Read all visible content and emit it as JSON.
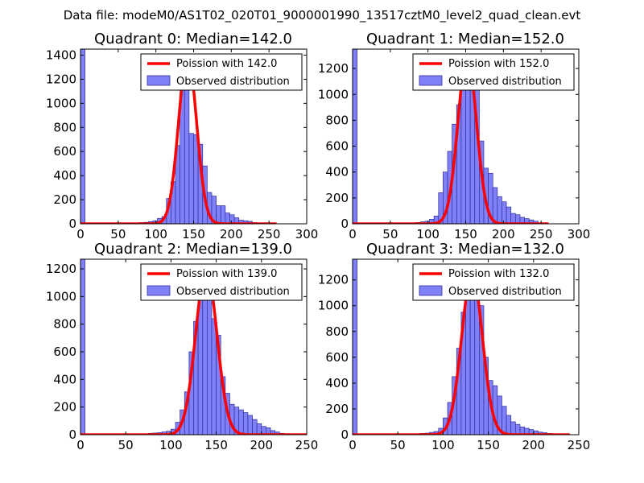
{
  "suptitle": "Data file: modeM0/AS1T02_020T01_9000001990_13517cztM0_level2_quad_clean.evt",
  "colors": {
    "bar_fill": "#8080f8",
    "bar_edge": "#2f2f9a",
    "poisson_line": "#ff0000",
    "axes": "#000000"
  },
  "chart_data": [
    {
      "type": "bar",
      "title": "Quadrant 0: Median=142.0",
      "xlim": [
        0,
        300
      ],
      "ylim": [
        0,
        1450
      ],
      "xticks": [
        0,
        50,
        100,
        150,
        200,
        250,
        300
      ],
      "yticks": [
        0,
        200,
        400,
        600,
        800,
        1000,
        1200,
        1400
      ],
      "bin_width": 6,
      "series": [
        {
          "name": "Observed distribution",
          "bin_left": [
            0,
            78,
            84,
            90,
            96,
            102,
            108,
            114,
            120,
            126,
            132,
            138,
            144,
            150,
            156,
            162,
            168,
            174,
            180,
            186,
            192,
            198,
            204,
            210,
            216,
            222,
            228
          ],
          "values": [
            1450,
            10,
            12,
            18,
            25,
            45,
            60,
            210,
            350,
            650,
            1230,
            1200,
            750,
            740,
            660,
            480,
            260,
            230,
            150,
            150,
            90,
            75,
            50,
            30,
            25,
            20,
            10
          ]
        },
        {
          "name": "Poission with 142.0",
          "lambda": 142.0,
          "peak": 1400,
          "x_range": [
            0,
            260
          ]
        }
      ],
      "legend": [
        "Poission with 142.0",
        "Observed distribution"
      ],
      "legend_loc": "top-right"
    },
    {
      "type": "bar",
      "title": "Quadrant 1: Median=152.0",
      "xlim": [
        0,
        300
      ],
      "ylim": [
        0,
        1350
      ],
      "xticks": [
        0,
        50,
        100,
        150,
        200,
        250,
        300
      ],
      "yticks": [
        0,
        200,
        400,
        600,
        800,
        1000,
        1200
      ],
      "bin_width": 6,
      "series": [
        {
          "name": "Observed distribution",
          "bin_left": [
            0,
            84,
            90,
            96,
            102,
            108,
            114,
            120,
            126,
            132,
            138,
            144,
            150,
            156,
            162,
            168,
            174,
            180,
            186,
            192,
            198,
            204,
            210,
            216,
            222,
            228,
            234,
            240
          ],
          "values": [
            1350,
            10,
            15,
            20,
            35,
            60,
            240,
            400,
            560,
            770,
            920,
            1050,
            1250,
            1220,
            1100,
            640,
            430,
            390,
            280,
            210,
            170,
            130,
            80,
            70,
            50,
            40,
            30,
            20
          ]
        },
        {
          "name": "Poission with 152.0",
          "lambda": 152.0,
          "peak": 1300,
          "x_range": [
            0,
            260
          ]
        }
      ],
      "legend": [
        "Poission with 152.0",
        "Observed distribution"
      ],
      "legend_loc": "top-right"
    },
    {
      "type": "bar",
      "title": "Quadrant 2: Median=139.0",
      "xlim": [
        0,
        250
      ],
      "ylim": [
        0,
        1270
      ],
      "xticks": [
        0,
        50,
        100,
        150,
        200,
        250
      ],
      "yticks": [
        0,
        200,
        400,
        600,
        800,
        1000,
        1200
      ],
      "bin_width": 5,
      "series": [
        {
          "name": "Observed distribution",
          "bin_left": [
            0,
            75,
            80,
            85,
            90,
            95,
            100,
            105,
            110,
            115,
            120,
            125,
            130,
            135,
            140,
            145,
            150,
            155,
            160,
            165,
            170,
            175,
            180,
            185,
            190,
            195,
            200,
            205,
            210,
            215,
            220
          ],
          "values": [
            1270,
            10,
            12,
            15,
            20,
            25,
            40,
            90,
            180,
            310,
            600,
            820,
            1000,
            1170,
            1190,
            840,
            720,
            420,
            300,
            220,
            200,
            180,
            160,
            140,
            110,
            80,
            60,
            50,
            30,
            20,
            10
          ]
        },
        {
          "name": "Poission with 139.0",
          "lambda": 139.0,
          "peak": 1200,
          "x_range": [
            0,
            250
          ]
        }
      ],
      "legend": [
        "Poission with 139.0",
        "Observed distribution"
      ],
      "legend_loc": "top-right"
    },
    {
      "type": "bar",
      "title": "Quadrant 3: Median=132.0",
      "xlim": [
        0,
        250
      ],
      "ylim": [
        0,
        1360
      ],
      "xticks": [
        0,
        50,
        100,
        150,
        200,
        250
      ],
      "yticks": [
        0,
        200,
        400,
        600,
        800,
        1000,
        1200
      ],
      "bin_width": 5,
      "series": [
        {
          "name": "Observed distribution",
          "bin_left": [
            0,
            75,
            80,
            85,
            90,
            95,
            100,
            105,
            110,
            115,
            120,
            125,
            130,
            135,
            140,
            145,
            150,
            155,
            160,
            165,
            170,
            175,
            180,
            185,
            190,
            195,
            200,
            205,
            210,
            215
          ],
          "values": [
            1360,
            10,
            12,
            18,
            25,
            50,
            130,
            250,
            450,
            670,
            950,
            1200,
            1300,
            1150,
            1000,
            600,
            420,
            380,
            300,
            220,
            150,
            100,
            80,
            60,
            50,
            40,
            30,
            20,
            15,
            10
          ]
        },
        {
          "name": "Poission with 132.0",
          "lambda": 132.0,
          "peak": 1250,
          "x_range": [
            0,
            240
          ]
        }
      ],
      "legend": [
        "Poission with 132.0",
        "Observed distribution"
      ],
      "legend_loc": "top-right"
    }
  ]
}
